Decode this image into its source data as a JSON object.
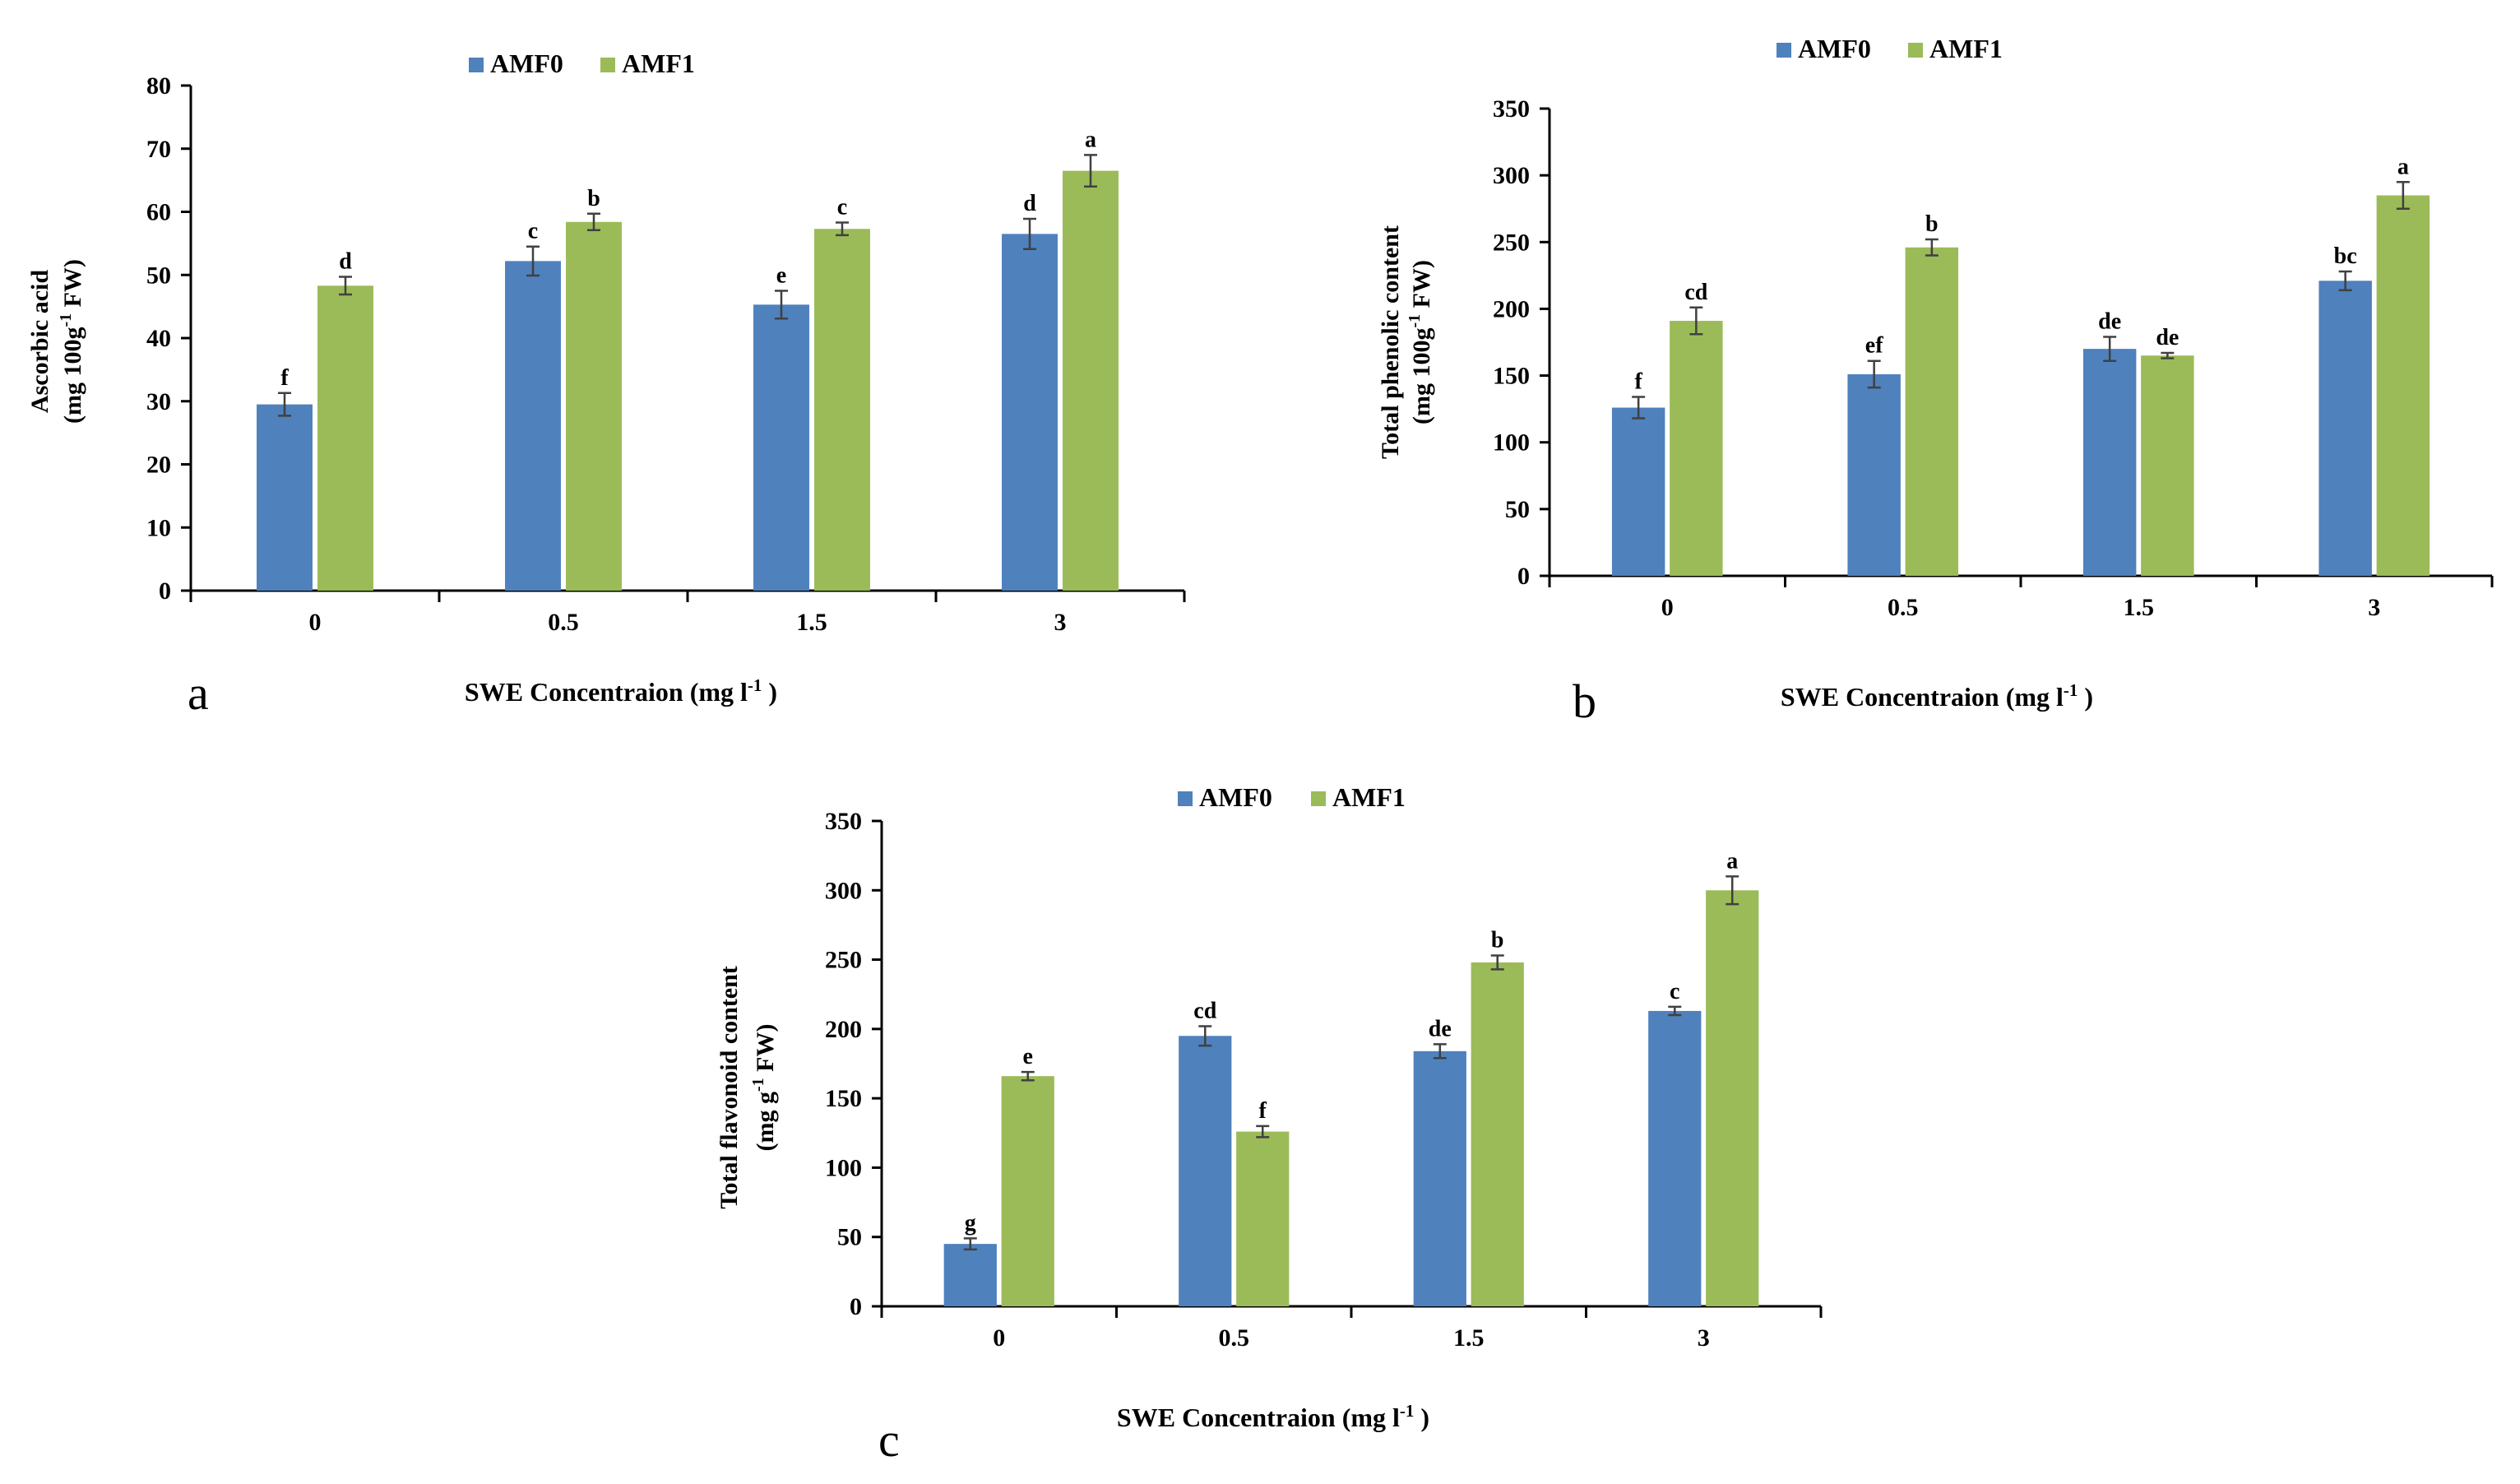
{
  "chart_data": [
    {
      "panel": "a",
      "type": "bar",
      "categories": [
        "0",
        "0.5",
        "1.5",
        "3"
      ],
      "series": [
        {
          "name": "AMF0",
          "values": [
            29.5,
            52.2,
            45.3,
            56.5
          ],
          "errors": [
            1.8,
            2.3,
            2.2,
            2.4
          ],
          "labels": [
            "f",
            "c",
            "e",
            "d"
          ]
        },
        {
          "name": "AMF1",
          "values": [
            48.3,
            58.4,
            57.3,
            66.5
          ],
          "errors": [
            1.4,
            1.3,
            1.0,
            2.5
          ],
          "labels": [
            "d",
            "b",
            "c",
            "a"
          ]
        }
      ],
      "ylabel_line1": "Ascorbic  acid",
      "ylabel_line2": "(mg 100g",
      "ylabel_sup": "-1",
      "ylabel_line2_end": " FW)",
      "xlabel": "SWE Concentraion  (mg  l",
      "xlabel_sup": "-1",
      "xlabel_end": " )",
      "ylim": [
        0,
        80
      ],
      "yticks": [
        0,
        10,
        20,
        30,
        40,
        50,
        60,
        70,
        80
      ],
      "legend_position": "top-center"
    },
    {
      "panel": "b",
      "type": "bar",
      "categories": [
        "0",
        "0.5",
        "1.5",
        "3"
      ],
      "series": [
        {
          "name": "AMF0",
          "values": [
            126,
            151,
            170,
            221
          ],
          "errors": [
            8,
            10,
            9,
            7
          ],
          "labels": [
            "f",
            "ef",
            "de",
            "bc"
          ]
        },
        {
          "name": "AMF1",
          "values": [
            191,
            246,
            165,
            285
          ],
          "errors": [
            10,
            6,
            2,
            10
          ],
          "labels": [
            "cd",
            "b",
            "de",
            "a"
          ]
        }
      ],
      "ylabel_line1": "Total phenolic content",
      "ylabel_line2": "(mg 100g",
      "ylabel_sup": "-1",
      "ylabel_line2_end": " FW)",
      "xlabel": "SWE Concentraion  (mg  l",
      "xlabel_sup": "-1",
      "xlabel_end": " )",
      "ylim": [
        0,
        350
      ],
      "yticks": [
        0,
        50,
        100,
        150,
        200,
        250,
        300,
        350
      ],
      "legend_position": "top-center"
    },
    {
      "panel": "c",
      "type": "bar",
      "categories": [
        "0",
        "0.5",
        "1.5",
        "3"
      ],
      "series": [
        {
          "name": "AMF0",
          "values": [
            45,
            195,
            184,
            213
          ],
          "errors": [
            4,
            7,
            5,
            3
          ],
          "labels": [
            "g",
            "cd",
            "de",
            "c"
          ]
        },
        {
          "name": "AMF1",
          "values": [
            166,
            126,
            248,
            300
          ],
          "errors": [
            3,
            4,
            5,
            10
          ],
          "labels": [
            "e",
            "f",
            "b",
            "a"
          ]
        }
      ],
      "ylabel_line1": "Total  flavonoid  content",
      "ylabel_line2": "(mg  g",
      "ylabel_sup": "-1",
      "ylabel_line2_end": " FW)",
      "xlabel": "SWE Concentraion  (mg  l",
      "xlabel_sup": "-1",
      "xlabel_end": " )",
      "ylim": [
        0,
        350
      ],
      "yticks": [
        0,
        50,
        100,
        150,
        200,
        250,
        300,
        350
      ],
      "legend_position": "top-center"
    }
  ],
  "colors": {
    "AMF0": "#4f81bd",
    "AMF1": "#9bbb59",
    "axis": "#000000",
    "errorbar": "#404040"
  }
}
